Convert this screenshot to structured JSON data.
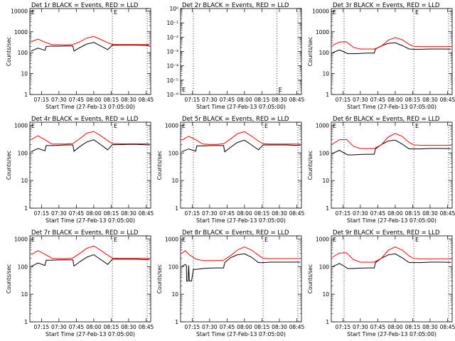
{
  "figure": {
    "background": "#ffffff"
  },
  "chart_data": [
    {
      "id": "det1r",
      "type": "line",
      "title": "Det 1r BLACK = Events, RED = LLD",
      "xlabel": "Start Time (27-Feb-13 07:05:00)",
      "ylabel": "Counts/sec",
      "x_ticks": [
        "07:15",
        "07:30",
        "07:45",
        "08:00",
        "08:15",
        "08:30",
        "08:45"
      ],
      "y_scale": "log",
      "y_ticks": [
        "1",
        "10",
        "100",
        "1000",
        "10000"
      ],
      "ylim": [
        1,
        13000
      ],
      "xlim": [
        7.0833,
        8.8167
      ],
      "marker_vlines": [
        8.2667,
        8.7667
      ],
      "marker_text": "E",
      "marker_text_pos": "top",
      "series": [
        {
          "name": "",
          "color": "#000000",
          "x": [
            7.1,
            7.2,
            7.3,
            7.3167,
            7.4,
            7.5,
            7.6,
            7.7,
            7.7167,
            7.8,
            7.9,
            8.0,
            8.1,
            8.2,
            8.2667,
            8.3667,
            8.5,
            8.6167,
            8.7,
            8.8
          ],
          "y": [
            120,
            165,
            130,
            200,
            205,
            205,
            210,
            210,
            120,
            175,
            260,
            310,
            210,
            140,
            230,
            230,
            230,
            230,
            225,
            220
          ]
        },
        {
          "name": "",
          "color": "#ff0000",
          "x": [
            7.1,
            7.2,
            7.3,
            7.4,
            7.5,
            7.6,
            7.7,
            7.8,
            7.9,
            8.0,
            8.1,
            8.2,
            8.2667,
            8.3667,
            8.5,
            8.6167,
            8.7,
            8.8
          ],
          "y": [
            330,
            450,
            320,
            240,
            240,
            235,
            245,
            330,
            500,
            600,
            430,
            300,
            250,
            245,
            245,
            245,
            245,
            245
          ]
        }
      ]
    },
    {
      "id": "det2r",
      "type": "line",
      "title": "Det 2r BLACK = Events, RED = LLD",
      "xlabel": "Start Time (27-Feb-13 07:05:00)",
      "ylabel": "",
      "x_ticks": [
        "07:15",
        "07:30",
        "07:45",
        "08:00",
        "08:15",
        "08:30",
        "08:45"
      ],
      "y_scale": "log",
      "y_ticks": [
        "10⁻⁶",
        "10⁻⁵",
        "10⁻⁴",
        "10⁻³",
        "10⁻²",
        "10⁻¹",
        "10⁰"
      ],
      "ylim": [
        1e-06,
        1
      ],
      "xlim": [
        7.0833,
        8.8167
      ],
      "marker_vlines": [
        7.2667,
        8.4667,
        8.7667
      ],
      "marker_text": "E",
      "marker_text_pos": "bottom",
      "series": []
    },
    {
      "id": "det3r",
      "type": "line",
      "title": "Det 3r BLACK = Events, RED = LLD",
      "xlabel": "Start Time (27-Feb-13 07:05:00)",
      "ylabel": "Counts/sec",
      "x_ticks": [
        "07:15",
        "07:30",
        "07:45",
        "08:00",
        "08:15",
        "08:30",
        "08:45"
      ],
      "y_scale": "log",
      "y_ticks": [
        "1",
        "10",
        "100",
        "1000",
        "10000"
      ],
      "ylim": [
        1,
        13000
      ],
      "xlim": [
        7.0833,
        8.8167
      ],
      "marker_vlines": [
        7.2667,
        8.2667,
        8.7667
      ],
      "marker_text": "E",
      "marker_text_pos": "top",
      "series": [
        {
          "name": "",
          "color": "#000000",
          "x": [
            7.1,
            7.2,
            7.2667,
            7.3167,
            7.4,
            7.5,
            7.6,
            7.7,
            7.7167,
            7.8,
            7.9,
            8.0,
            8.1,
            8.2,
            8.2667,
            8.3667,
            8.5,
            8.6167,
            8.7,
            8.8
          ],
          "y": [
            100,
            135,
            110,
            90,
            90,
            92,
            95,
            95,
            150,
            210,
            280,
            300,
            220,
            150,
            145,
            145,
            150,
            150,
            150,
            148
          ]
        },
        {
          "name": "",
          "color": "#ff0000",
          "x": [
            7.1,
            7.2,
            7.3,
            7.4,
            7.5,
            7.6,
            7.7,
            7.8,
            7.9,
            8.0,
            8.1,
            8.2,
            8.2667,
            8.3667,
            8.5,
            8.6167,
            8.7,
            8.8
          ],
          "y": [
            220,
            320,
            330,
            180,
            150,
            150,
            150,
            200,
            400,
            530,
            420,
            250,
            200,
            195,
            195,
            195,
            195,
            195
          ]
        }
      ]
    },
    {
      "id": "det4r",
      "type": "line",
      "title": "Det 4r BLACK = Events, RED = LLD",
      "xlabel": "Start Time (27-Feb-13 07:05:00)",
      "ylabel": "Counts/sec",
      "x_ticks": [
        "07:15",
        "07:30",
        "07:45",
        "08:00",
        "08:15",
        "08:30",
        "08:45"
      ],
      "y_scale": "log",
      "y_ticks": [
        "1",
        "10",
        "100",
        "1000"
      ],
      "ylim": [
        1,
        1300
      ],
      "xlim": [
        7.0833,
        8.8167
      ],
      "marker_vlines": [
        8.2667,
        8.7667
      ],
      "marker_text": "E",
      "marker_text_pos": "top",
      "series": [
        {
          "name": "",
          "color": "#000000",
          "x": [
            7.1,
            7.2,
            7.3,
            7.3167,
            7.4,
            7.5,
            7.6,
            7.7,
            7.7167,
            7.8,
            7.9,
            8.0,
            8.1,
            8.2,
            8.2667,
            8.3667,
            8.5,
            8.6167,
            8.7,
            8.8
          ],
          "y": [
            110,
            145,
            120,
            185,
            185,
            190,
            195,
            195,
            115,
            170,
            250,
            300,
            200,
            130,
            200,
            200,
            205,
            205,
            200,
            195
          ]
        },
        {
          "name": "",
          "color": "#ff0000",
          "x": [
            7.1,
            7.2,
            7.3,
            7.4,
            7.5,
            7.6,
            7.7,
            7.8,
            7.9,
            8.0,
            8.1,
            8.2,
            8.2667,
            8.3667,
            8.5,
            8.6167,
            8.7,
            8.8
          ],
          "y": [
            300,
            420,
            300,
            210,
            210,
            210,
            220,
            330,
            520,
            600,
            420,
            280,
            220,
            215,
            215,
            215,
            215,
            215
          ]
        }
      ]
    },
    {
      "id": "det5r",
      "type": "line",
      "title": "Det 5r BLACK = Events, RED = LLD",
      "xlabel": "Start Time (27-Feb-13 07:05:00)",
      "ylabel": "Counts/sec",
      "x_ticks": [
        "07:15",
        "07:30",
        "07:45",
        "08:00",
        "08:15",
        "08:30",
        "08:45"
      ],
      "y_scale": "log",
      "y_ticks": [
        "1",
        "10",
        "100",
        "1000"
      ],
      "ylim": [
        1,
        1300
      ],
      "xlim": [
        7.0833,
        8.8167
      ],
      "marker_vlines": [
        7.2667,
        8.2667,
        8.7667
      ],
      "marker_text": "E",
      "marker_text_pos": "top",
      "series": [
        {
          "name": "",
          "color": "#000000",
          "x": [
            7.1,
            7.2,
            7.3,
            7.3167,
            7.4,
            7.5,
            7.6,
            7.7,
            7.7167,
            7.8,
            7.9,
            8.0,
            8.1,
            8.2,
            8.2667,
            8.3667,
            8.5,
            8.6167,
            8.7,
            8.8
          ],
          "y": [
            110,
            140,
            115,
            180,
            180,
            185,
            185,
            185,
            110,
            160,
            240,
            290,
            195,
            130,
            195,
            195,
            195,
            195,
            190,
            190
          ]
        },
        {
          "name": "",
          "color": "#ff0000",
          "x": [
            7.1,
            7.2,
            7.3,
            7.4,
            7.5,
            7.6,
            7.7,
            7.8,
            7.9,
            8.0,
            8.1,
            8.2,
            8.2667,
            8.3667,
            8.5,
            8.6167,
            8.7,
            8.8
          ],
          "y": [
            290,
            400,
            300,
            210,
            205,
            205,
            215,
            320,
            500,
            590,
            410,
            270,
            215,
            210,
            210,
            210,
            210,
            210
          ]
        }
      ]
    },
    {
      "id": "det6r",
      "type": "line",
      "title": "Det 6r BLACK = Events, RED = LLD",
      "xlabel": "Start Time (27-Feb-13 07:05:00)",
      "ylabel": "Counts/sec",
      "x_ticks": [
        "07:15",
        "07:30",
        "07:45",
        "08:00",
        "08:15",
        "08:30",
        "08:45"
      ],
      "y_scale": "log",
      "y_ticks": [
        "1",
        "10",
        "100",
        "1000"
      ],
      "ylim": [
        1,
        1300
      ],
      "xlim": [
        7.0833,
        8.8167
      ],
      "marker_vlines": [
        7.2667,
        8.2667,
        8.7667
      ],
      "marker_text": "E",
      "marker_text_pos": "top",
      "series": [
        {
          "name": "",
          "color": "#000000",
          "x": [
            7.1,
            7.2,
            7.2667,
            7.3167,
            7.4,
            7.5,
            7.6,
            7.7,
            7.7167,
            7.8,
            7.9,
            8.0,
            8.1,
            8.2,
            8.2667,
            8.3667,
            8.5,
            8.6167,
            8.7,
            8.8
          ],
          "y": [
            95,
            125,
            100,
            85,
            85,
            88,
            90,
            90,
            140,
            200,
            270,
            290,
            210,
            140,
            140,
            140,
            145,
            145,
            145,
            142
          ]
        },
        {
          "name": "",
          "color": "#ff0000",
          "x": [
            7.1,
            7.2,
            7.3,
            7.4,
            7.5,
            7.6,
            7.7,
            7.8,
            7.9,
            8.0,
            8.1,
            8.2,
            8.2667,
            8.3667,
            8.5,
            8.6167,
            8.7,
            8.8
          ],
          "y": [
            210,
            300,
            310,
            175,
            145,
            145,
            145,
            195,
            380,
            510,
            400,
            240,
            195,
            190,
            190,
            190,
            190,
            190
          ]
        }
      ]
    },
    {
      "id": "det7r",
      "type": "line",
      "title": "Det 7r BLACK = Events, RED = LLD",
      "xlabel": "Start Time (27-Feb-13 07:05:00)",
      "ylabel": "Counts/sec",
      "x_ticks": [
        "07:15",
        "07:30",
        "07:45",
        "08:00",
        "08:15",
        "08:30",
        "08:45"
      ],
      "y_scale": "log",
      "y_ticks": [
        "1",
        "10",
        "100",
        "1000"
      ],
      "ylim": [
        1,
        1300
      ],
      "xlim": [
        7.0833,
        8.8167
      ],
      "marker_vlines": [
        8.2667,
        8.7667
      ],
      "marker_text": "E",
      "marker_text_pos": "top",
      "series": [
        {
          "name": "",
          "color": "#000000",
          "x": [
            7.1,
            7.2,
            7.3,
            7.3167,
            7.4,
            7.5,
            7.6,
            7.7,
            7.7167,
            7.8,
            7.9,
            8.0,
            8.1,
            8.2,
            8.2667,
            8.3667,
            8.5,
            8.6167,
            8.7,
            8.8
          ],
          "y": [
            100,
            135,
            110,
            170,
            170,
            175,
            175,
            175,
            105,
            150,
            220,
            270,
            180,
            120,
            185,
            185,
            185,
            185,
            180,
            180
          ]
        },
        {
          "name": "",
          "color": "#ff0000",
          "x": [
            7.1,
            7.2,
            7.3,
            7.4,
            7.5,
            7.6,
            7.7,
            7.8,
            7.9,
            8.0,
            8.1,
            8.2,
            8.2667,
            8.3667,
            8.5,
            8.6167,
            8.7,
            8.8
          ],
          "y": [
            270,
            380,
            280,
            200,
            195,
            195,
            205,
            300,
            460,
            560,
            390,
            260,
            205,
            200,
            200,
            200,
            200,
            200
          ]
        }
      ]
    },
    {
      "id": "det8r",
      "type": "line",
      "title": "Det 8r BLACK = Events, RED = LLD",
      "xlabel": "Start Time (27-Feb-13 07:05:00)",
      "ylabel": "Counts/sec",
      "x_ticks": [
        "07:15",
        "07:30",
        "07:45",
        "08:00",
        "08:15",
        "08:30",
        "08:45"
      ],
      "y_scale": "log",
      "y_ticks": [
        "1",
        "10",
        "100",
        "1000"
      ],
      "ylim": [
        1,
        1300
      ],
      "xlim": [
        7.0833,
        8.8167
      ],
      "marker_vlines": [
        7.2667,
        8.2667,
        8.7667
      ],
      "marker_text": "E",
      "marker_text_pos": "top",
      "series": [
        {
          "name": "",
          "color": "#000000",
          "x": [
            7.1,
            7.15,
            7.1667,
            7.17,
            7.19,
            7.2,
            7.21,
            7.24,
            7.2667,
            7.3167,
            7.4,
            7.5,
            7.6,
            7.7,
            7.7167,
            7.8,
            7.9,
            8.0,
            8.1,
            8.2,
            8.2667,
            8.3667,
            8.5,
            8.6167,
            8.7,
            8.8
          ],
          "y": [
            100,
            120,
            110,
            30,
            30,
            110,
            30,
            30,
            80,
            80,
            85,
            88,
            90,
            90,
            140,
            210,
            270,
            290,
            220,
            140,
            140,
            145,
            145,
            145,
            145,
            145
          ]
        },
        {
          "name": "",
          "color": "#ff0000",
          "x": [
            7.1,
            7.15,
            7.2,
            7.25,
            7.3,
            7.4,
            7.5,
            7.6,
            7.7,
            7.8,
            7.9,
            8.0,
            8.1,
            8.2,
            8.2667,
            8.3667,
            8.5,
            8.6167,
            8.7,
            8.8
          ],
          "y": [
            300,
            380,
            280,
            230,
            190,
            165,
            165,
            165,
            170,
            250,
            400,
            520,
            400,
            260,
            200,
            195,
            195,
            195,
            195,
            195
          ]
        }
      ]
    },
    {
      "id": "det9r",
      "type": "line",
      "title": "Det 9r BLACK = Events, RED = LLD",
      "xlabel": "Start Time (27-Feb-13 07:05:00)",
      "ylabel": "Counts/sec",
      "x_ticks": [
        "07:15",
        "07:30",
        "07:45",
        "08:00",
        "08:15",
        "08:30",
        "08:45"
      ],
      "y_scale": "log",
      "y_ticks": [
        "1",
        "10",
        "100",
        "1000"
      ],
      "ylim": [
        1,
        1300
      ],
      "xlim": [
        7.0833,
        8.8167
      ],
      "marker_vlines": [
        7.2667,
        8.2667,
        8.7667
      ],
      "marker_text": "E",
      "marker_text_pos": "top",
      "series": [
        {
          "name": "",
          "color": "#000000",
          "x": [
            7.1,
            7.2,
            7.2667,
            7.3167,
            7.4,
            7.5,
            7.6,
            7.7,
            7.7167,
            7.8,
            7.9,
            8.0,
            8.1,
            8.2,
            8.2667,
            8.3667,
            8.5,
            8.6167,
            8.7,
            8.8
          ],
          "y": [
            100,
            130,
            105,
            85,
            85,
            88,
            90,
            90,
            140,
            200,
            265,
            290,
            210,
            140,
            140,
            140,
            145,
            145,
            145,
            142
          ]
        },
        {
          "name": "",
          "color": "#ff0000",
          "x": [
            7.1,
            7.2,
            7.3,
            7.4,
            7.5,
            7.6,
            7.7,
            7.8,
            7.9,
            8.0,
            8.1,
            8.2,
            8.2667,
            8.3667,
            8.5,
            8.6167,
            8.7,
            8.8
          ],
          "y": [
            220,
            310,
            320,
            180,
            145,
            145,
            145,
            200,
            390,
            520,
            400,
            245,
            195,
            190,
            190,
            190,
            190,
            190
          ]
        }
      ]
    }
  ]
}
